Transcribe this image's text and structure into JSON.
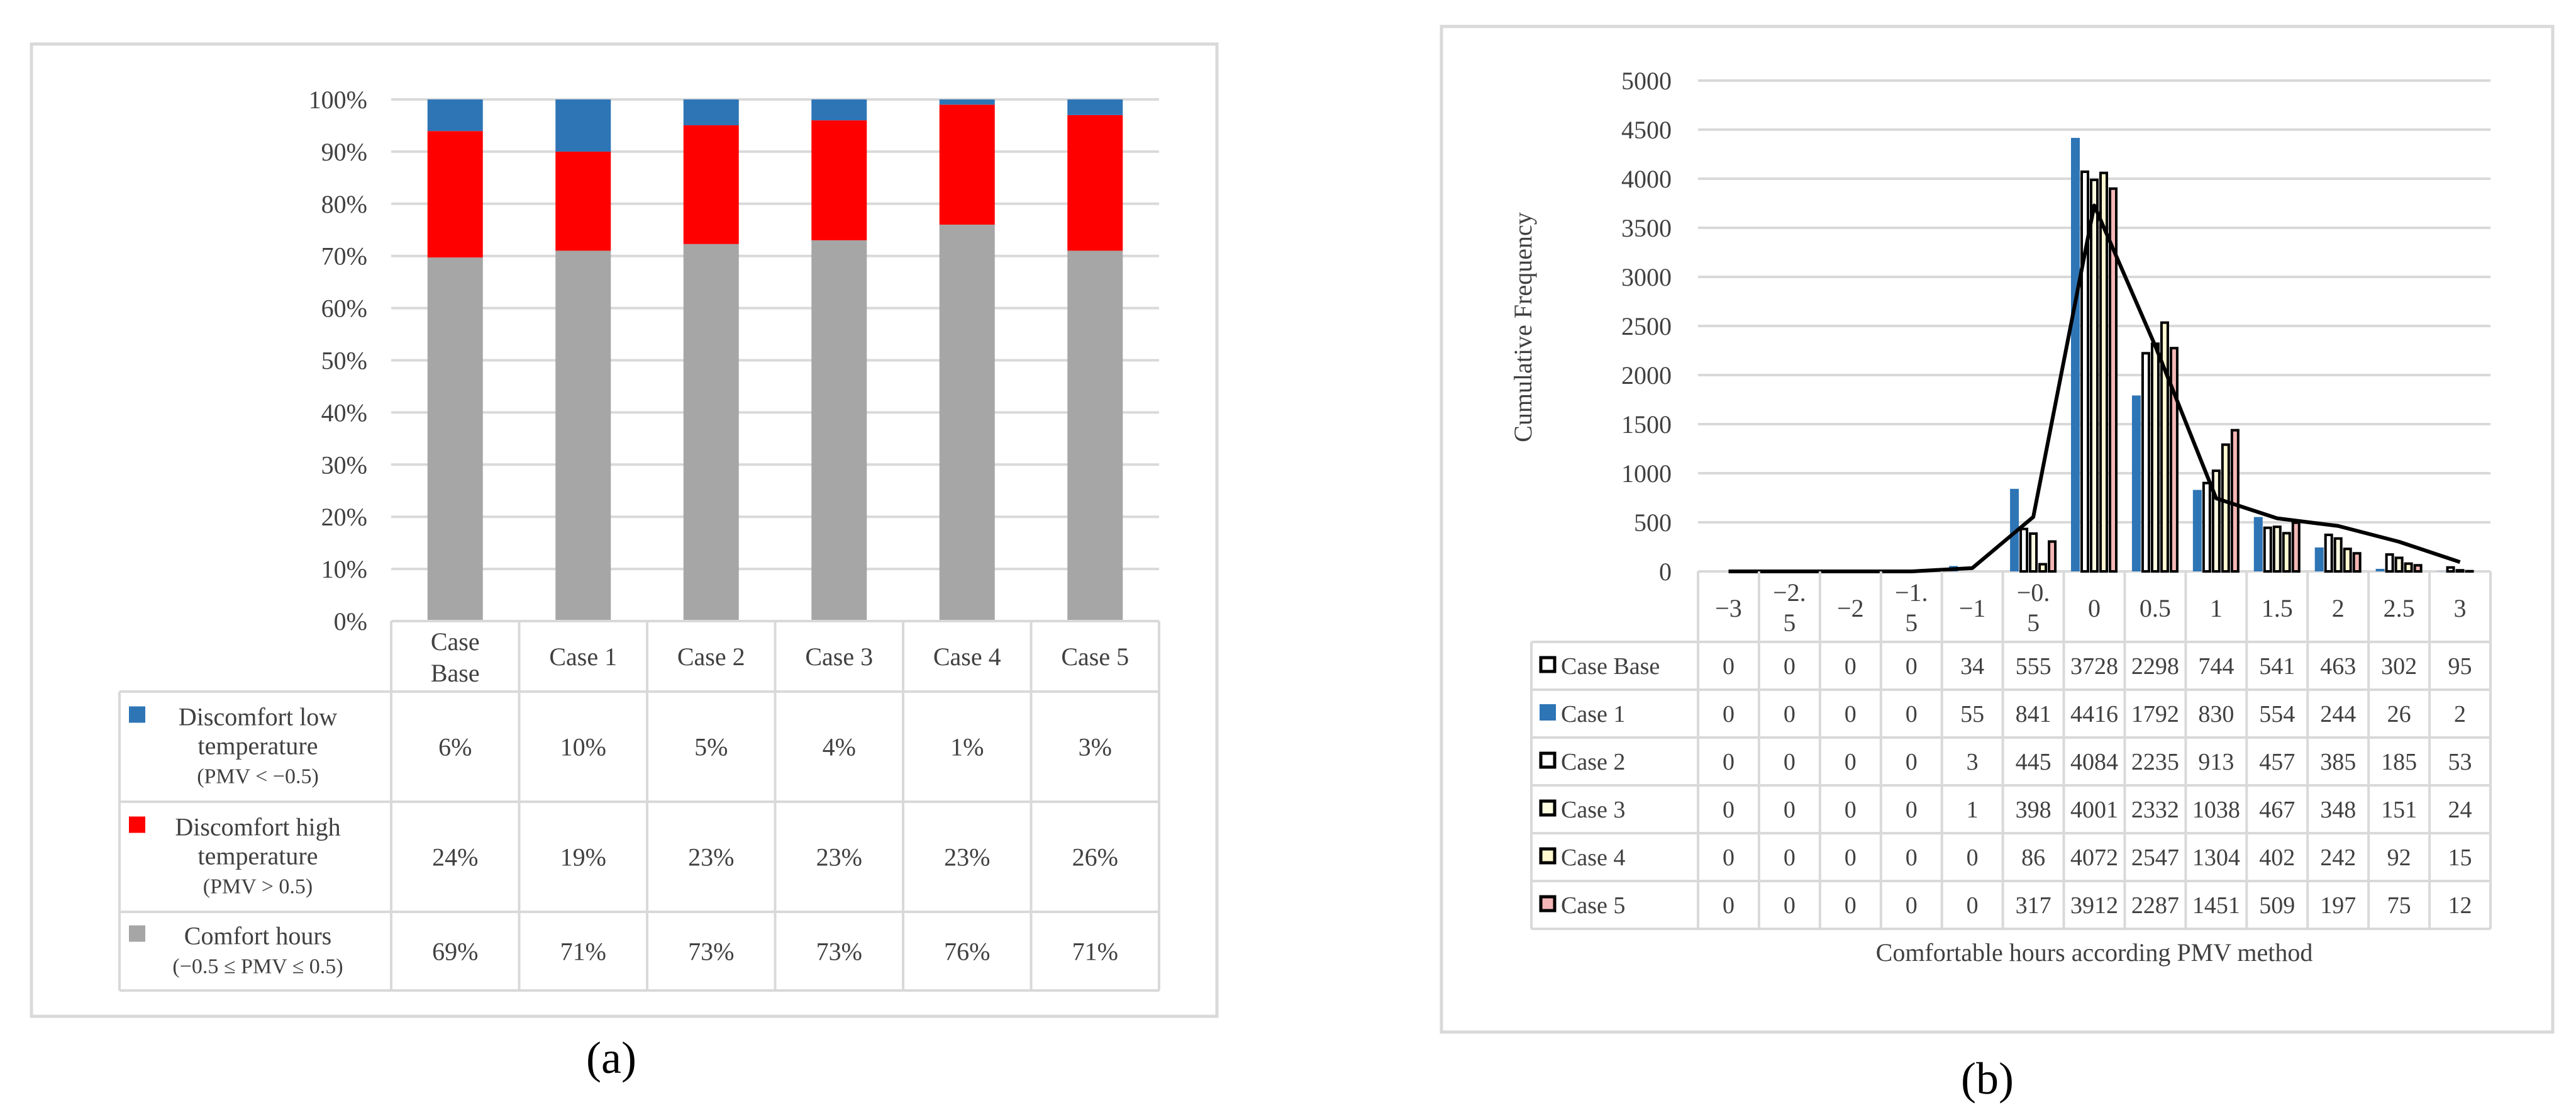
{
  "panel_a": {
    "label": "(a)",
    "chart_data": {
      "type": "stacked_bar",
      "categories": [
        "Case Base",
        "Case 1",
        "Case 2",
        "Case 3",
        "Case 4",
        "Case 5"
      ],
      "y_ticks": [
        "0%",
        "10%",
        "20%",
        "30%",
        "40%",
        "50%",
        "60%",
        "70%",
        "80%",
        "90%",
        "100%"
      ],
      "ylim": [
        0,
        100
      ],
      "grid": true,
      "series": [
        {
          "name_lines": [
            "Comfort hours",
            "(−0.5 ≤ PMV ≤ 0.5)"
          ],
          "color": "#a6a6a6",
          "values": [
            69,
            71,
            73,
            73,
            76,
            71
          ],
          "labels": [
            "69%",
            "71%",
            "73%",
            "73%",
            "76%",
            "71%"
          ]
        },
        {
          "name_lines": [
            "Discomfort high",
            "temperature",
            "(PMV >  0.5)"
          ],
          "color": "#ff0000",
          "values": [
            24,
            19,
            23,
            23,
            23,
            26
          ],
          "labels": [
            "24%",
            "19%",
            "23%",
            "23%",
            "23%",
            "26%"
          ]
        },
        {
          "name_lines": [
            "Discomfort low",
            "temperature",
            "(PMV < −0.5)"
          ],
          "color": "#2e75b6",
          "values": [
            6,
            10,
            5,
            4,
            1,
            3
          ],
          "labels": [
            "6%",
            "10%",
            "5%",
            "4%",
            "1%",
            "3%"
          ]
        }
      ],
      "table_order": [
        2,
        1,
        0
      ]
    }
  },
  "panel_b": {
    "label": "(b)",
    "chart_data": {
      "type": "bar",
      "categories": [
        "−3",
        "−2.5",
        "−2",
        "−1.5",
        "−1",
        "−0.5",
        "0",
        "0.5",
        "1",
        "1.5",
        "2",
        "2.5",
        "3"
      ],
      "category_display": [
        [
          "−3"
        ],
        [
          "−2.",
          "5"
        ],
        [
          "−2"
        ],
        [
          "−1.",
          "5"
        ],
        [
          "−1"
        ],
        [
          "−0.",
          "5"
        ],
        [
          "0"
        ],
        [
          "0.5"
        ],
        [
          "1"
        ],
        [
          "1.5"
        ],
        [
          "2"
        ],
        [
          "2.5"
        ],
        [
          "3"
        ]
      ],
      "ylabel": "Cumulative Frequency",
      "xlabel": "Comfortable hours according PMV method",
      "ylim": [
        0,
        5000
      ],
      "y_ticks": [
        0,
        500,
        1000,
        1500,
        2000,
        2500,
        3000,
        3500,
        4000,
        4500,
        5000
      ],
      "grid": true,
      "series": [
        {
          "name": "Case Base",
          "style": "line",
          "color": "#000000",
          "values": [
            0,
            0,
            0,
            0,
            34,
            555,
            3728,
            2298,
            744,
            541,
            463,
            302,
            95
          ]
        },
        {
          "name": "Case 1",
          "style": "solid",
          "color": "#2e75b6",
          "values": [
            0,
            0,
            0,
            0,
            55,
            841,
            4416,
            1792,
            830,
            554,
            244,
            26,
            2
          ]
        },
        {
          "name": "Case 2",
          "style": "outline",
          "fill": "#ffffff",
          "values": [
            0,
            0,
            0,
            0,
            3,
            445,
            4084,
            2235,
            913,
            457,
            385,
            185,
            53
          ]
        },
        {
          "name": "Case 3",
          "style": "outline",
          "fill": "#fdfbe0",
          "values": [
            0,
            0,
            0,
            0,
            1,
            398,
            4001,
            2332,
            1038,
            467,
            348,
            151,
            24
          ]
        },
        {
          "name": "Case 4",
          "style": "outline",
          "fill": "#fff8d0",
          "values": [
            0,
            0,
            0,
            0,
            0,
            86,
            4072,
            2547,
            1304,
            402,
            242,
            92,
            15
          ]
        },
        {
          "name": "Case 5",
          "style": "outline",
          "fill": "#f4b6b6",
          "values": [
            0,
            0,
            0,
            0,
            0,
            317,
            3912,
            2287,
            1451,
            509,
            197,
            75,
            12
          ]
        }
      ]
    }
  }
}
